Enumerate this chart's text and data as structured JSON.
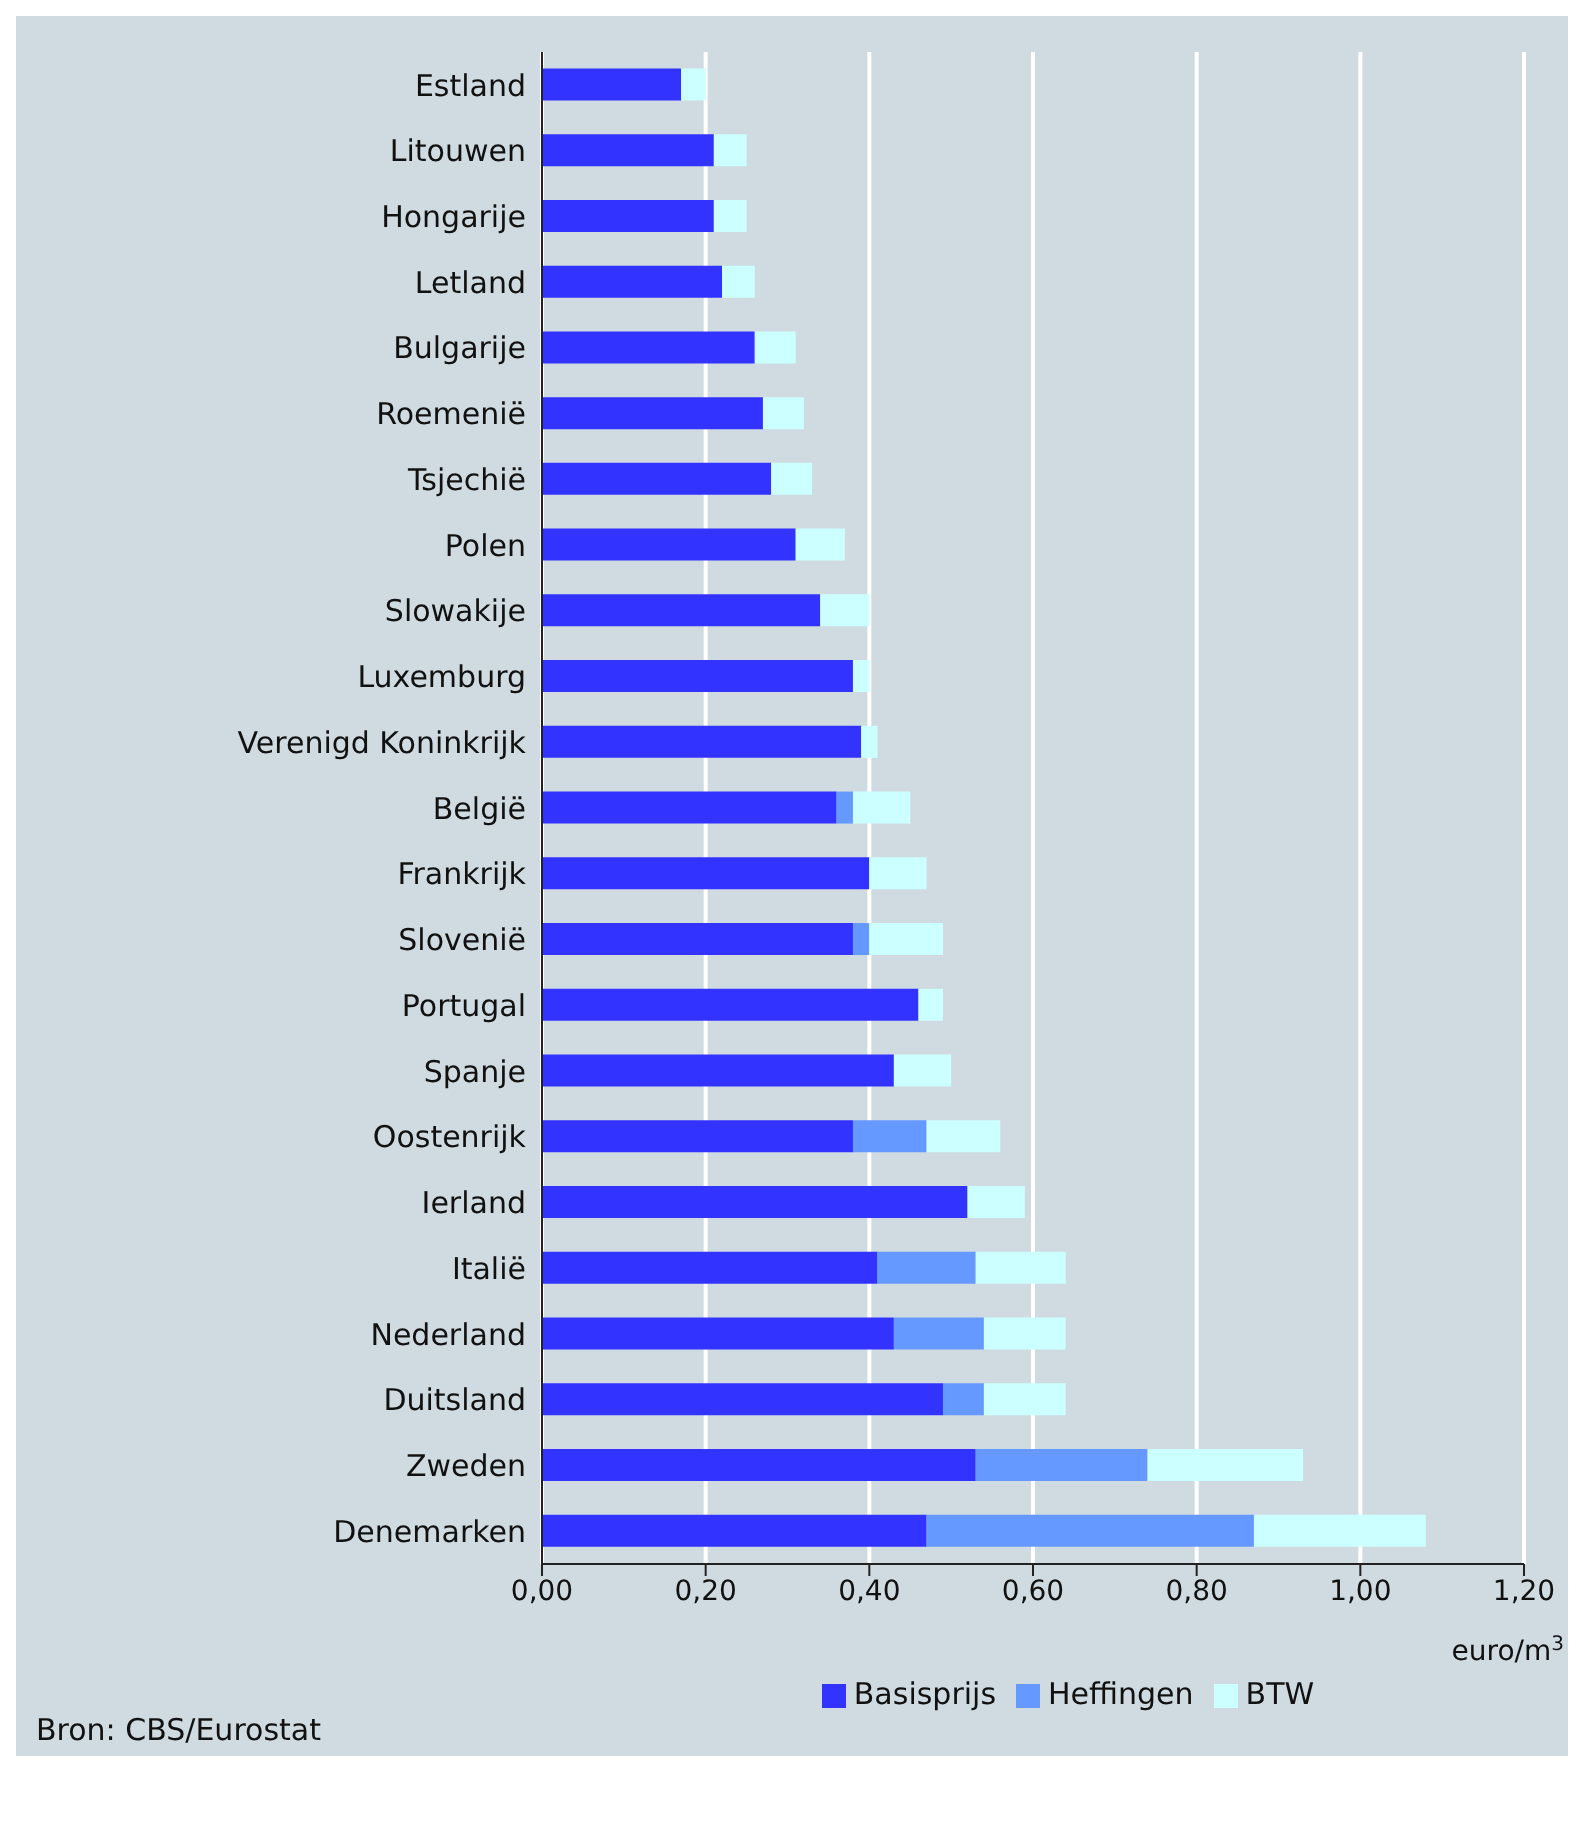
{
  "chart_data": {
    "type": "bar",
    "orientation": "horizontal",
    "stacked": true,
    "categories": [
      "Estland",
      "Litouwen",
      "Hongarije",
      "Letland",
      "Bulgarije",
      "Roemenië",
      "Tsjechië",
      "Polen",
      "Slowakije",
      "Luxemburg",
      "Verenigd Koninkrijk",
      "België",
      "Frankrijk",
      "Slovenië",
      "Portugal",
      "Spanje",
      "Oostenrijk",
      "Ierland",
      "Italië",
      "Nederland",
      "Duitsland",
      "Zweden",
      "Denemarken"
    ],
    "series": [
      {
        "name": "Basisprijs",
        "color": "#3333ff",
        "values": [
          0.17,
          0.21,
          0.21,
          0.22,
          0.26,
          0.27,
          0.28,
          0.31,
          0.34,
          0.38,
          0.39,
          0.36,
          0.4,
          0.38,
          0.46,
          0.43,
          0.38,
          0.52,
          0.41,
          0.43,
          0.49,
          0.53,
          0.47
        ]
      },
      {
        "name": "Heffingen",
        "color": "#6699ff",
        "values": [
          0,
          0,
          0,
          0,
          0,
          0,
          0,
          0,
          0,
          0,
          0,
          0.02,
          0,
          0.02,
          0,
          0,
          0.09,
          0,
          0.12,
          0.11,
          0.05,
          0.21,
          0.4
        ]
      },
      {
        "name": "BTW",
        "color": "#ccffff",
        "values": [
          0.03,
          0.04,
          0.04,
          0.04,
          0.05,
          0.05,
          0.05,
          0.06,
          0.06,
          0.02,
          0.02,
          0.07,
          0.07,
          0.09,
          0.03,
          0.07,
          0.09,
          0.07,
          0.11,
          0.1,
          0.1,
          0.19,
          0.21
        ]
      }
    ],
    "xlim": [
      0,
      1.2
    ],
    "xticks": [
      {
        "value": 0,
        "label": "0,00"
      },
      {
        "value": 0.2,
        "label": "0,20"
      },
      {
        "value": 0.4,
        "label": "0,40"
      },
      {
        "value": 0.6,
        "label": "0,60"
      },
      {
        "value": 0.8,
        "label": "0,80"
      },
      {
        "value": 1.0,
        "label": "1,00"
      },
      {
        "value": 1.2,
        "label": "1,20"
      }
    ],
    "xlabel": "euro/m$^{3}$",
    "grid": "x",
    "legend": "bottom",
    "annotations": [
      "Bron: CBS/Eurostat"
    ]
  }
}
